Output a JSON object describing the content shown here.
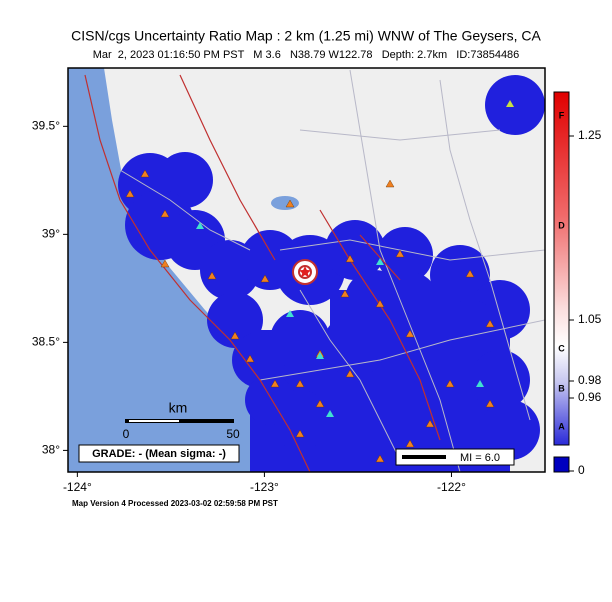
{
  "title": "CISN/cgs Uncertainty Ratio Map : 2 km (1.25 mi) WNW of The Geysers, CA",
  "subtitle": "Mar  2, 2023 01:16:50 PM PST   M 3.6   N38.79 W122.78   Depth: 2.7km   ID:73854486",
  "map": {
    "lon_range": [
      -124.05,
      -121.5
    ],
    "lat_range": [
      37.9,
      39.77
    ],
    "lon_ticks": [
      {
        "value": -124,
        "label": "-124°"
      },
      {
        "value": -123,
        "label": "-123°"
      },
      {
        "value": -122,
        "label": "-122°"
      }
    ],
    "lat_ticks": [
      {
        "value": 39.5,
        "label": "39.5°"
      },
      {
        "value": 39,
        "label": "39°"
      },
      {
        "value": 38.5,
        "label": "38.5°"
      },
      {
        "value": 38,
        "label": "38°"
      }
    ]
  },
  "scale_bar": {
    "unit": "km",
    "ticks": [
      0,
      50
    ]
  },
  "grade": "GRADE: - (Mean sigma: -)",
  "legend": "MI = 6.0",
  "colorbar": {
    "ticks": [
      1.25,
      1.05,
      0.98,
      0.96,
      0
    ],
    "grades": [
      "F",
      "D",
      "C",
      "B",
      "A"
    ]
  },
  "footer": "Map Version 4 Processed 2023-03-02 02:59:58 PM PST"
}
